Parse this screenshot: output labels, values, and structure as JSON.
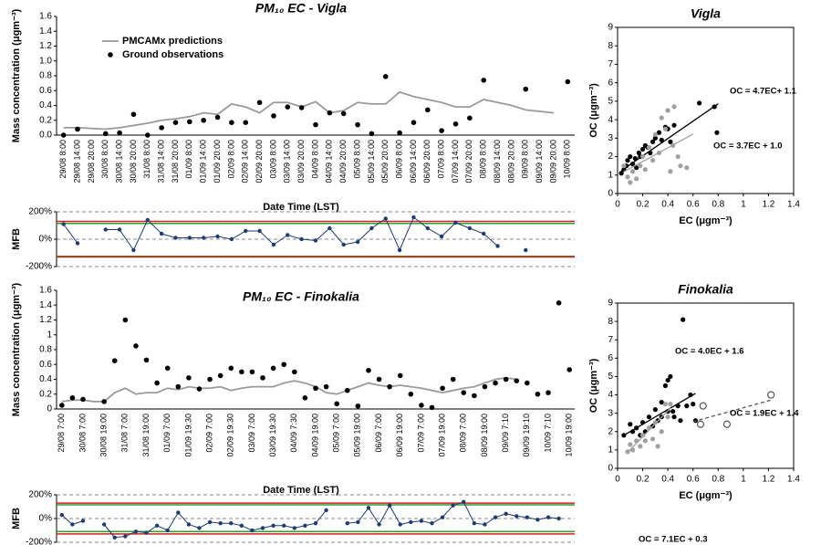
{
  "chart_data": [
    {
      "type": "line",
      "title": "PM₁₀ EC - Vigla",
      "ylabel": "Mass concentration (μgm⁻³)",
      "categories": [
        "29/08 8:00",
        "29/08 14:00",
        "29/08 20:00",
        "30/08 8:00",
        "30/08 14:00",
        "30/08 20:00",
        "31/08 8:00",
        "31/08 14:00",
        "31/08 20:00",
        "01/09 8:00",
        "01/09 14:00",
        "01/09 20:00",
        "02/09 8:00",
        "02/09 14:00",
        "02/09 20:00",
        "03/09 8:00",
        "03/09 14:00",
        "03/09 20:00",
        "04/09 8:00",
        "04/09 14:00",
        "04/09 20:00",
        "05/09 8:00",
        "05/09 14:00",
        "05/09 20:00",
        "06/09 8:00",
        "06/09 14:00",
        "06/09 20:00",
        "07/09 8:00",
        "07/09 14:00",
        "07/09 20:00",
        "08/09 8:00",
        "08/09 14:00",
        "08/09 20:00",
        "09/09 8:00",
        "09/09 14:00",
        "09/09 20:00",
        "10/09 8:00"
      ],
      "series": [
        {
          "name": "PMCAMx predictions",
          "mode": "line",
          "color": "#9a9a9a",
          "values": [
            0.1,
            0.1,
            0.09,
            0.08,
            0.1,
            0.13,
            0.16,
            0.2,
            0.22,
            0.25,
            0.3,
            0.28,
            0.42,
            0.38,
            0.3,
            0.44,
            0.44,
            0.38,
            0.45,
            0.3,
            0.33,
            0.44,
            0.42,
            0.42,
            0.58,
            0.52,
            0.48,
            0.44,
            0.38,
            0.38,
            0.48,
            0.44,
            0.4,
            0.34,
            0.32,
            0.3,
            null
          ]
        },
        {
          "name": "Ground observations",
          "mode": "markers",
          "color": "#000000",
          "values": [
            0.0,
            0.08,
            null,
            0.02,
            0.03,
            0.28,
            0.0,
            0.1,
            0.17,
            0.18,
            0.2,
            0.24,
            0.17,
            0.17,
            0.44,
            0.26,
            0.38,
            0.37,
            0.14,
            0.3,
            0.29,
            0.14,
            0.02,
            0.79,
            0.03,
            0.17,
            0.34,
            0.06,
            0.15,
            0.23,
            0.74,
            null,
            null,
            0.62,
            null,
            null,
            0.72
          ]
        }
      ],
      "ylim": [
        0,
        1.6
      ],
      "yticks": [
        {
          "value": 0,
          "label": "0.0"
        },
        {
          "value": 0.2,
          "label": "0.2"
        },
        {
          "value": 0.4,
          "label": "0.4"
        },
        {
          "value": 0.6,
          "label": "0.6"
        },
        {
          "value": 0.8,
          "label": "0.8"
        },
        {
          "value": 1.0,
          "label": "1.0"
        },
        {
          "value": 1.2,
          "label": "1.2"
        },
        {
          "value": 1.4,
          "label": "1.4"
        },
        {
          "value": 1.6,
          "label": "1.6"
        }
      ],
      "legend": "upper left"
    },
    {
      "type": "mfb",
      "xlabel": "Date Time (LST)",
      "ylabel": "MFB",
      "color": "#1f3b73",
      "values": [
        110,
        -30,
        null,
        70,
        70,
        -80,
        140,
        40,
        10,
        10,
        10,
        20,
        0,
        60,
        60,
        -40,
        30,
        0,
        -10,
        80,
        -40,
        -20,
        80,
        150,
        -80,
        160,
        80,
        20,
        120,
        80,
        40,
        -50,
        null,
        -80,
        null,
        null,
        null
      ],
      "ylim": [
        -200,
        200
      ],
      "yticks": [
        {
          "value": -200,
          "label": "-200%"
        },
        {
          "value": 0,
          "label": "0%"
        },
        {
          "value": 200,
          "label": "200%"
        }
      ],
      "reference_lines": [
        {
          "value": 130,
          "color": "#d62020"
        },
        {
          "value": 115,
          "color": "#2ca02c"
        },
        {
          "value": -125,
          "color": "#2ca02c"
        },
        {
          "value": -130,
          "color": "#d62020"
        }
      ]
    },
    {
      "type": "scatter",
      "title": "Vigla",
      "xlabel": "EC (μgm⁻³)",
      "ylabel": "OC (μgm⁻³)",
      "xlim": [
        0,
        1.4
      ],
      "xticks": [
        0,
        0.2,
        0.4,
        0.6,
        0.8,
        1,
        1.2,
        1.4
      ],
      "ylim": [
        0,
        9
      ],
      "yticks": [
        0,
        1,
        2,
        3,
        4,
        5,
        6,
        7,
        8,
        9
      ],
      "series": [
        {
          "color": "#000000",
          "marker": "filled",
          "x": [
            0.03,
            0.05,
            0.07,
            0.08,
            0.1,
            0.12,
            0.14,
            0.15,
            0.17,
            0.18,
            0.2,
            0.22,
            0.24,
            0.26,
            0.28,
            0.3,
            0.33,
            0.35,
            0.38,
            0.4,
            0.42,
            0.45,
            0.65,
            0.77,
            0.79
          ],
          "y": [
            1.1,
            1.3,
            1.5,
            1.8,
            2,
            1.6,
            1.9,
            1.4,
            2.2,
            2.0,
            2.4,
            2.6,
            2.5,
            2.2,
            2.8,
            3.0,
            3.3,
            2.9,
            3.6,
            3.5,
            2.8,
            3.7,
            4.9,
            4.7,
            3.3
          ],
          "fit": {
            "slope": 4.7,
            "intercept": 1.1,
            "x": [
              0.03,
              0.8
            ],
            "dash": false
          },
          "annotation": "OC = 4.7EC+ 1.1"
        },
        {
          "color": "#a0a0a0",
          "marker": "filled",
          "x": [
            0.05,
            0.08,
            0.1,
            0.12,
            0.15,
            0.18,
            0.2,
            0.22,
            0.25,
            0.28,
            0.3,
            0.33,
            0.35,
            0.38,
            0.4,
            0.42,
            0.44,
            0.45,
            0.48,
            0.5,
            0.55
          ],
          "y": [
            1.5,
            0.9,
            0.6,
            1.2,
            0.8,
            1.5,
            2.0,
            1.3,
            2.5,
            1.8,
            3.2,
            2.2,
            4.1,
            3.5,
            4.5,
            1.2,
            2.6,
            4.7,
            2.0,
            1.5,
            1.4
          ],
          "fit": {
            "slope": 3.7,
            "intercept": 1.0,
            "x": [
              0.05,
              0.6
            ],
            "dash": false
          },
          "annotation": "OC = 3.7EC + 1.0"
        }
      ]
    },
    {
      "type": "line",
      "title": "PM₁₀ EC - Finokalia",
      "ylabel": "Mass concentration (μgm⁻³)",
      "categories": [
        "29/08 7:00",
        null,
        "30/08 7:00",
        null,
        "30/08 19:00",
        null,
        "31/08 7:00",
        null,
        "31/08 19:00",
        null,
        "01/09 7:00",
        null,
        "01/09 19:30",
        null,
        "02/09 7:00",
        null,
        "02/09 19:30",
        null,
        "03/09 7:00",
        null,
        "03/09 19:30",
        null,
        "04/09 7:30",
        null,
        "04/09 19:00",
        null,
        "05/09 7:00",
        null,
        "05/09 19:00",
        null,
        "06/09 7:00",
        null,
        "06/09 19:00",
        null,
        "07/09 7:00",
        null,
        "07/09 19:00",
        null,
        "08/09 7:00",
        null,
        "08/09 19:00",
        null,
        "09/09 7:10",
        null,
        "09/09 19:10",
        null,
        "10/09 7:10",
        null,
        "10/09 19:00"
      ],
      "series": [
        {
          "mode": "line",
          "color": "#9a9a9a",
          "values": [
            0.1,
            0.12,
            0.12,
            0.1,
            0.1,
            0.22,
            0.28,
            0.2,
            0.22,
            0.22,
            0.28,
            0.26,
            0.3,
            0.28,
            0.28,
            0.3,
            0.25,
            0.28,
            0.3,
            0.3,
            0.3,
            0.35,
            0.38,
            0.35,
            0.3,
            0.22,
            0.2,
            0.25,
            0.3,
            0.35,
            0.32,
            0.3,
            0.32,
            0.3,
            0.28,
            0.25,
            0.22,
            0.25,
            0.28,
            0.3,
            0.35,
            0.4,
            0.42,
            0.4,
            null,
            null,
            null,
            null,
            null
          ]
        },
        {
          "mode": "markers",
          "color": "#000000",
          "values": [
            0.05,
            0.15,
            0.13,
            null,
            0.1,
            0.65,
            1.2,
            0.85,
            0.66,
            0.35,
            0.55,
            0.3,
            0.42,
            0.27,
            0.4,
            0.45,
            0.55,
            0.5,
            0.5,
            0.42,
            0.55,
            0.6,
            0.5,
            0.15,
            0.28,
            0.3,
            0.07,
            0.25,
            0.04,
            0.52,
            0.4,
            0.3,
            0.45,
            0.2,
            0.05,
            0.02,
            0.28,
            0.4,
            0.22,
            0.18,
            0.3,
            0.35,
            0.4,
            0.38,
            0.35,
            0.2,
            0.22,
            1.43,
            0.53
          ]
        }
      ],
      "ylim": [
        0,
        1.6
      ],
      "yticks": [
        0,
        0.2,
        0.4,
        0.6,
        0.8,
        1,
        1.2,
        1.4,
        1.6
      ]
    },
    {
      "type": "mfb",
      "xlabel": "Date Time (LST)",
      "ylabel": "MFB",
      "color": "#1f3b73",
      "values": [
        30,
        -50,
        -20,
        null,
        -50,
        -160,
        -150,
        -110,
        -120,
        -60,
        -100,
        50,
        -50,
        -80,
        -30,
        -40,
        -40,
        -60,
        -100,
        -80,
        -60,
        -60,
        -80,
        -60,
        -40,
        70,
        null,
        -40,
        -30,
        90,
        -50,
        110,
        -50,
        -30,
        -20,
        -40,
        10,
        110,
        140,
        -40,
        -50,
        10,
        40,
        20,
        10,
        -10,
        10,
        0,
        null
      ],
      "ylim": [
        -200,
        200
      ],
      "yticks": [
        {
          "value": -200,
          "label": "-200%"
        },
        {
          "value": 0,
          "label": "0%"
        },
        {
          "value": 200,
          "label": "200%"
        }
      ],
      "reference_lines": [
        {
          "value": 130,
          "color": "#d62020"
        },
        {
          "value": 115,
          "color": "#2ca02c"
        },
        {
          "value": -110,
          "color": "#2ca02c"
        },
        {
          "value": -130,
          "color": "#d62020"
        }
      ]
    },
    {
      "type": "scatter",
      "title": "Finokalia",
      "xlabel": "EC (μgm⁻³)",
      "ylabel": "OC (μgm⁻³)",
      "xlim": [
        0,
        1.4
      ],
      "xticks": [
        0,
        0.2,
        0.4,
        0.6,
        0.8,
        1,
        1.2,
        1.4
      ],
      "ylim": [
        0,
        9
      ],
      "yticks": [
        0,
        1,
        2,
        3,
        4,
        5,
        6,
        7,
        8,
        9
      ],
      "series": [
        {
          "color": "#000000",
          "marker": "filled",
          "x": [
            0.05,
            0.1,
            0.12,
            0.15,
            0.18,
            0.2,
            0.22,
            0.25,
            0.28,
            0.3,
            0.32,
            0.35,
            0.38,
            0.4,
            0.42,
            0.44,
            0.45,
            0.48,
            0.5,
            0.52,
            0.55,
            0.58,
            0.6,
            0.62,
            0.35,
            0.4
          ],
          "y": [
            1.8,
            2.4,
            2.0,
            2.2,
            1.8,
            2.5,
            2.0,
            2.8,
            2.3,
            3.2,
            2.6,
            3.6,
            4.5,
            4.8,
            5.0,
            3.1,
            2.8,
            3.4,
            2.6,
            8.1,
            3.4,
            4.0,
            3.5,
            2.6,
            2.8,
            3.1
          ],
          "fit": {
            "slope": 4.0,
            "intercept": 1.6,
            "x": [
              0.05,
              0.62
            ],
            "dash": false
          },
          "annotation": "OC = 4.0EC + 1.6"
        },
        {
          "color": "#a0a0a0",
          "marker": "filled",
          "x": [
            0.08,
            0.1,
            0.12,
            0.15,
            0.18,
            0.2,
            0.22,
            0.25,
            0.28,
            0.3,
            0.32,
            0.35,
            0.38,
            0.4,
            0.42
          ],
          "y": [
            0.9,
            1.3,
            1.0,
            1.5,
            1.2,
            1.8,
            1.5,
            2.2,
            1.6,
            2.5,
            1.2,
            2.0,
            3.5,
            2.8,
            3.5
          ],
          "fit": {
            "slope": 7.1,
            "intercept": 0.3,
            "x": [
              0.08,
              0.42
            ],
            "dash": false
          },
          "annotation": "OC = 7.1EC + 0.3"
        },
        {
          "color": "#555555",
          "marker": "open",
          "x": [
            0.68,
            0.66,
            0.87,
            1.22
          ],
          "y": [
            3.4,
            2.4,
            2.4,
            4.0
          ],
          "fit": {
            "slope": 1.9,
            "intercept": 1.4,
            "x": [
              0.6,
              1.22
            ],
            "dash": true
          },
          "annotation": "OC = 1.9EC + 1.4"
        }
      ]
    }
  ]
}
